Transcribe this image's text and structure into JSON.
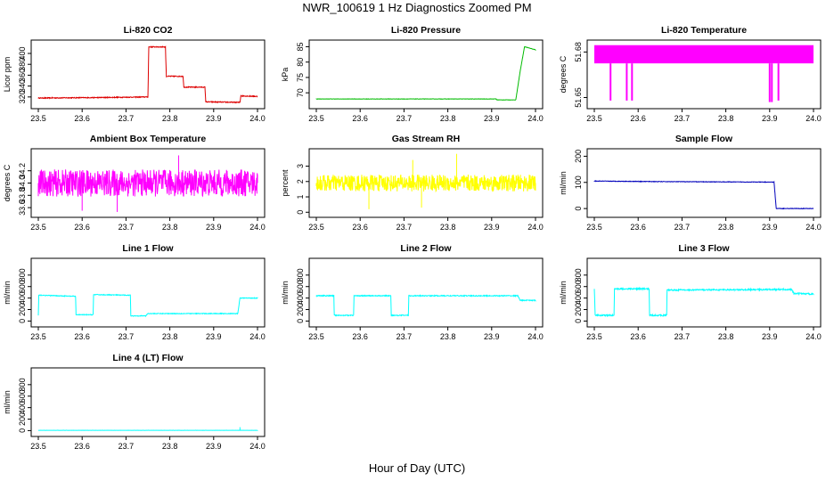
{
  "title": "NWR_100619  1 Hz Diagnostics Zoomed PM",
  "xlabel": "Hour of Day (UTC)",
  "chart_data": [
    {
      "type": "line",
      "title": "Li-820 CO2",
      "ylabel": "Licor ppm",
      "color": "#dd0000",
      "xlim": [
        23.5,
        24.0
      ],
      "ylim": [
        305,
        418
      ],
      "yticks": [
        "320",
        "340",
        "360",
        "380",
        "400"
      ],
      "xticks": [
        "23.5",
        "23.6",
        "23.7",
        "23.8",
        "23.9",
        "24.0"
      ],
      "segments": [
        [
          23.5,
          318
        ],
        [
          23.65,
          319
        ],
        [
          23.75,
          320
        ],
        [
          23.752,
          412
        ],
        [
          23.79,
          412
        ],
        [
          23.792,
          358
        ],
        [
          23.83,
          358
        ],
        [
          23.832,
          338
        ],
        [
          23.88,
          338
        ],
        [
          23.882,
          311
        ],
        [
          23.96,
          310
        ],
        [
          23.962,
          322
        ],
        [
          24.0,
          321
        ]
      ],
      "noise": 0.8,
      "spikes": []
    },
    {
      "type": "line",
      "title": "Li-820 Pressure",
      "ylabel": "kPa",
      "color": "#00bb00",
      "xlim": [
        23.5,
        24.0
      ],
      "ylim": [
        66,
        86
      ],
      "yticks": [
        "70",
        "75",
        "80",
        "85"
      ],
      "xticks": [
        "23.5",
        "23.6",
        "23.7",
        "23.8",
        "23.9",
        "24.0"
      ],
      "segments": [
        [
          23.5,
          68
        ],
        [
          23.91,
          68
        ],
        [
          23.912,
          67.7
        ],
        [
          23.955,
          67.7
        ],
        [
          23.965,
          77
        ],
        [
          23.975,
          85
        ],
        [
          24.0,
          84
        ]
      ],
      "noise": 0.05,
      "spikes": []
    },
    {
      "type": "line",
      "title": "Li-820 Temperature",
      "ylabel": "degrees C",
      "color": "#ff00ff",
      "xlim": [
        23.5,
        24.0
      ],
      "ylim": [
        51.645,
        51.6855
      ],
      "yticks": [
        "51.65",
        "51.68"
      ],
      "xticks": [
        "23.5",
        "23.6",
        "23.7",
        "23.8",
        "23.9",
        "24.0"
      ],
      "band": [
        51.6725,
        51.6845
      ],
      "spikes": [
        [
          23.537,
          51.648
        ],
        [
          23.574,
          51.648
        ],
        [
          23.586,
          51.648
        ],
        [
          23.9,
          51.647
        ],
        [
          23.905,
          51.647
        ],
        [
          23.92,
          51.648
        ]
      ]
    },
    {
      "type": "line",
      "title": "Ambient Box Temperature",
      "ylabel": "degrees C",
      "color": "#ff00ff",
      "xlim": [
        23.5,
        24.0
      ],
      "ylim": [
        33.5,
        34.5
      ],
      "yticks": [
        "33.6",
        "33.8",
        "34.0",
        "34.2"
      ],
      "xticks": [
        "23.5",
        "23.6",
        "23.7",
        "23.8",
        "23.9",
        "24.0"
      ],
      "segments": [
        [
          23.5,
          34.0
        ],
        [
          24.0,
          34.0
        ]
      ],
      "noise": 0.22,
      "spikes": [
        [
          23.6,
          33.55
        ],
        [
          23.68,
          33.53
        ],
        [
          23.82,
          34.45
        ]
      ]
    },
    {
      "type": "line",
      "title": "Gas Stream RH",
      "ylabel": "percent",
      "color": "#ffff00",
      "xlim": [
        23.5,
        24.0
      ],
      "ylim": [
        -0.1,
        3.9
      ],
      "yticks": [
        "0",
        "1",
        "2",
        "3"
      ],
      "xticks": [
        "23.5",
        "23.6",
        "23.7",
        "23.8",
        "23.9",
        "24.0"
      ],
      "segments": [
        [
          23.5,
          1.9
        ],
        [
          24.0,
          1.9
        ]
      ],
      "noise": 0.55,
      "spikes": [
        [
          23.72,
          3.4
        ],
        [
          23.82,
          3.8
        ],
        [
          23.62,
          0.2
        ],
        [
          23.74,
          0.3
        ]
      ]
    },
    {
      "type": "line",
      "title": "Sample Flow",
      "ylabel": "ml/min",
      "color": "#0000bb",
      "xlim": [
        23.5,
        24.0
      ],
      "ylim": [
        -20,
        215
      ],
      "yticks": [
        "0",
        "100",
        "200"
      ],
      "xticks": [
        "23.5",
        "23.6",
        "23.7",
        "23.8",
        "23.9",
        "24.0"
      ],
      "segments": [
        [
          23.5,
          105
        ],
        [
          23.65,
          103
        ],
        [
          23.91,
          101
        ],
        [
          23.915,
          0
        ],
        [
          24.0,
          0
        ]
      ],
      "noise": 1.0,
      "spikes": []
    },
    {
      "type": "line",
      "title": "Line 1 Flow",
      "ylabel": "ml/min",
      "color": "#00ffff",
      "xlim": [
        23.5,
        24.0
      ],
      "ylim": [
        -40,
        1030
      ],
      "yticks": [
        "0",
        "200",
        "400",
        "600",
        "800"
      ],
      "xticks": [
        "23.5",
        "23.6",
        "23.7",
        "23.8",
        "23.9",
        "24.0"
      ],
      "segments": [
        [
          23.5,
          100
        ],
        [
          23.501,
          450
        ],
        [
          23.585,
          430
        ],
        [
          23.586,
          110
        ],
        [
          23.625,
          110
        ],
        [
          23.626,
          460
        ],
        [
          23.71,
          450
        ],
        [
          23.711,
          90
        ],
        [
          23.745,
          90
        ],
        [
          23.75,
          130
        ],
        [
          23.955,
          130
        ],
        [
          23.96,
          400
        ],
        [
          24.0,
          400
        ]
      ],
      "noise": 6,
      "spikes": []
    },
    {
      "type": "line",
      "title": "Line 2 Flow",
      "ylabel": "ml/min",
      "color": "#00ffff",
      "xlim": [
        23.5,
        24.0
      ],
      "ylim": [
        -40,
        1030
      ],
      "yticks": [
        "0",
        "200",
        "400",
        "600",
        "800"
      ],
      "xticks": [
        "23.5",
        "23.6",
        "23.7",
        "23.8",
        "23.9",
        "24.0"
      ],
      "segments": [
        [
          23.5,
          440
        ],
        [
          23.54,
          440
        ],
        [
          23.541,
          100
        ],
        [
          23.585,
          100
        ],
        [
          23.586,
          440
        ],
        [
          23.67,
          440
        ],
        [
          23.671,
          100
        ],
        [
          23.71,
          100
        ],
        [
          23.711,
          440
        ],
        [
          23.96,
          440
        ],
        [
          23.965,
          360
        ],
        [
          24.0,
          360
        ]
      ],
      "noise": 8,
      "spikes": []
    },
    {
      "type": "line",
      "title": "Line 3 Flow",
      "ylabel": "ml/min",
      "color": "#00ffff",
      "xlim": [
        23.5,
        24.0
      ],
      "ylim": [
        -40,
        1030
      ],
      "yticks": [
        "0",
        "200",
        "400",
        "600",
        "800"
      ],
      "xticks": [
        "23.5",
        "23.6",
        "23.7",
        "23.8",
        "23.9",
        "24.0"
      ],
      "segments": [
        [
          23.5,
          560
        ],
        [
          23.502,
          100
        ],
        [
          23.545,
          100
        ],
        [
          23.546,
          560
        ],
        [
          23.625,
          560
        ],
        [
          23.626,
          100
        ],
        [
          23.665,
          100
        ],
        [
          23.666,
          540
        ],
        [
          23.95,
          550
        ],
        [
          23.955,
          480
        ],
        [
          24.0,
          470
        ]
      ],
      "noise": 12,
      "spikes": []
    },
    {
      "type": "line",
      "title": "Line 4 (LT) Flow",
      "ylabel": "ml/min",
      "color": "#00ffff",
      "xlim": [
        23.5,
        24.0
      ],
      "ylim": [
        -40,
        1030
      ],
      "yticks": [
        "0",
        "200",
        "400",
        "600",
        "800"
      ],
      "xticks": [
        "23.5",
        "23.6",
        "23.7",
        "23.8",
        "23.9",
        "24.0"
      ],
      "segments": [
        [
          23.5,
          5
        ],
        [
          24.0,
          5
        ]
      ],
      "noise": 1,
      "spikes": [
        [
          23.96,
          60
        ]
      ]
    }
  ]
}
